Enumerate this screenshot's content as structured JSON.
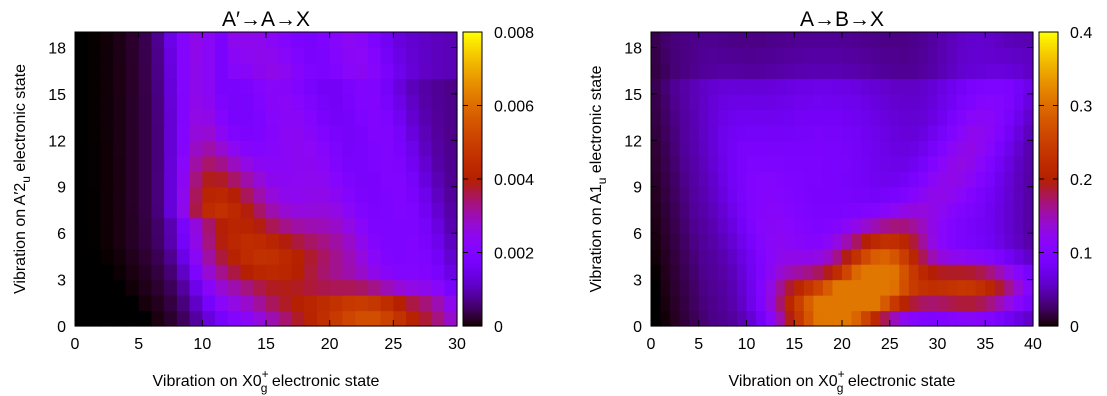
{
  "chart_data": [
    {
      "type": "heatmap",
      "title": "A′→A→X",
      "xlabel": {
        "main": "Vibration on X0",
        "sup": "+",
        "sub": "g",
        "tail": " electronic state"
      },
      "ylabel": {
        "main": "Vibration on A′2",
        "sub": "u",
        "tail": " electronic state"
      },
      "xlim": [
        0,
        30
      ],
      "ylim": [
        0,
        19
      ],
      "x_ticks": [
        0,
        5,
        10,
        15,
        20,
        25,
        30
      ],
      "y_ticks": [
        0,
        3,
        6,
        9,
        12,
        15,
        18
      ],
      "colorbar": {
        "range": [
          0,
          0.008
        ],
        "ticks": [
          0,
          0.002,
          0.004,
          0.006,
          0.008
        ],
        "tick_labels": [
          "0",
          "0.002",
          "0.004",
          "0.006",
          "0.008"
        ],
        "colormap": "black-purple-red-orange-yellow"
      },
      "grid": {
        "nx": 30,
        "ny": 19
      },
      "values_description_only_for_rendering": null,
      "features": [
        {
          "x": 22,
          "y": 0.2,
          "value": 0.0055
        },
        {
          "x": 17,
          "y": 3,
          "value": 0.0045
        },
        {
          "x": 13,
          "y": 6,
          "value": 0.004
        },
        {
          "x": 9,
          "y": 14,
          "value": 0.003
        },
        {
          "x": 2,
          "y": 3,
          "value": 0.0
        }
      ]
    },
    {
      "type": "heatmap",
      "title": "A→B→X",
      "xlabel": {
        "main": "Vibration on X0",
        "sup": "+",
        "sub": "g",
        "tail": " electronic state"
      },
      "ylabel": {
        "main": "Vibration on A1",
        "sub": "u",
        "tail": " electronic state"
      },
      "xlim": [
        0,
        40
      ],
      "ylim": [
        0,
        19
      ],
      "x_ticks": [
        0,
        5,
        10,
        15,
        20,
        25,
        30,
        35,
        40
      ],
      "y_ticks": [
        0,
        3,
        6,
        9,
        12,
        15,
        18
      ],
      "colorbar": {
        "range": [
          0,
          0.4
        ],
        "ticks": [
          0,
          0.1,
          0.2,
          0.3,
          0.4
        ],
        "tick_labels": [
          "0",
          "0.1",
          "0.2",
          "0.3",
          "0.4"
        ],
        "colormap": "black-purple-red-orange-yellow"
      },
      "grid": {
        "nx": 40,
        "ny": 19
      },
      "features": [
        {
          "x": 20,
          "y": 1,
          "value": 0.29
        },
        {
          "x": 22,
          "y": 4,
          "value": 0.23
        },
        {
          "x": 32,
          "y": 2,
          "value": 0.22
        },
        {
          "x": 35,
          "y": 7,
          "value": 0.13
        },
        {
          "x": 2,
          "y": 15,
          "value": 0.0
        }
      ]
    }
  ]
}
